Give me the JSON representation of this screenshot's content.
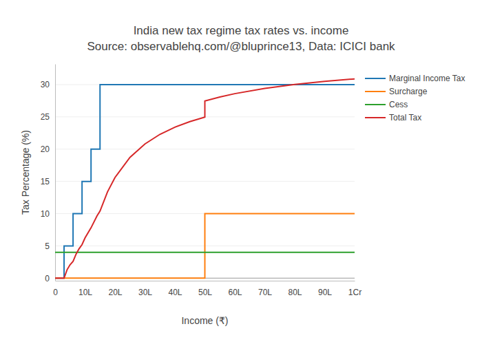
{
  "chart_data": {
    "type": "line",
    "title": "India new tax regime tax rates vs. income",
    "subtitle": "Source: observablehq.com/@bluprince13, Data: ICICI bank",
    "x_label": "Income (₹)",
    "y_label": "Tax Percentage (%)",
    "xlim": [
      0,
      100
    ],
    "xticks": [
      0,
      {
        "value": 10,
        "label": "10L"
      },
      {
        "value": 20,
        "label": "20L"
      },
      {
        "value": 30,
        "label": "30L"
      },
      {
        "value": 40,
        "label": "40L"
      },
      {
        "value": 50,
        "label": "50L"
      },
      {
        "value": 60,
        "label": "60L"
      },
      {
        "value": 70,
        "label": "70L"
      },
      {
        "value": 80,
        "label": "80L"
      },
      {
        "value": 90,
        "label": "90L"
      },
      {
        "value": 100,
        "label": "1Cr"
      }
    ],
    "ylim": [
      -0.4,
      33.2
    ],
    "yticks": [
      0,
      5,
      10,
      15,
      20,
      25,
      30
    ],
    "grid": true,
    "legend": "right",
    "series": [
      {
        "name": "Marginal Income Tax",
        "color": "#1f77b4",
        "line_style": "solid",
        "x": [
          0,
          3,
          3,
          6,
          6,
          9,
          9,
          12,
          12,
          15,
          15,
          100
        ],
        "values": [
          0,
          0,
          5,
          5,
          10,
          10,
          15,
          15,
          20,
          20,
          30,
          30
        ]
      },
      {
        "name": "Surcharge",
        "color": "#ff7f0e",
        "line_style": "solid",
        "x": [
          0,
          50,
          50,
          100
        ],
        "values": [
          0,
          0,
          10,
          10
        ]
      },
      {
        "name": "Cess",
        "color": "#2ca02c",
        "line_style": "solid",
        "x": [
          0,
          100
        ],
        "values": [
          4,
          4
        ]
      },
      {
        "name": "Total Tax",
        "color": "#d62728",
        "line_style": "solid",
        "x": [
          0,
          3,
          4,
          5,
          6,
          7,
          8,
          9,
          10,
          12,
          14,
          15,
          17.5,
          20,
          25,
          30,
          35,
          40,
          45,
          50,
          50,
          55,
          60,
          70,
          80,
          90,
          100
        ],
        "values": [
          0,
          0,
          1.3,
          2.08,
          2.6,
          3.71,
          4.55,
          5.2,
          6.24,
          7.8,
          9.66,
          10.4,
          13.37,
          15.6,
          18.72,
          20.8,
          22.29,
          23.4,
          24.27,
          24.96,
          27.46,
          28.08,
          28.6,
          29.42,
          30.03,
          30.51,
          30.89
        ]
      }
    ]
  }
}
